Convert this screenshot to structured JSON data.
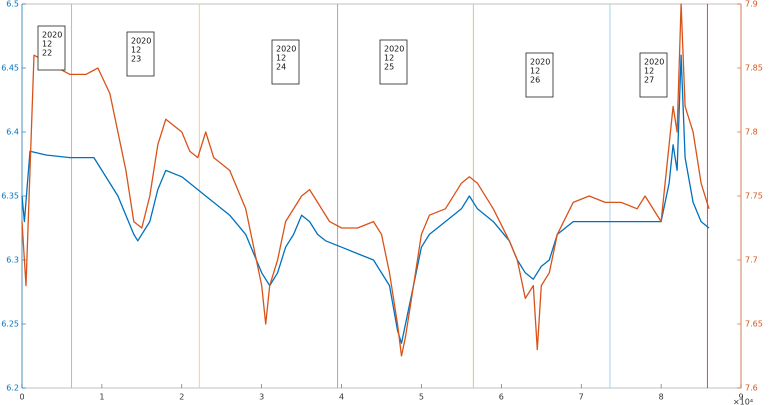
{
  "chart_data": {
    "type": "line",
    "xlim": [
      0,
      9
    ],
    "xticks": [
      0,
      1,
      2,
      3,
      4,
      5,
      6,
      7,
      8,
      9
    ],
    "x_multiplier": "×10⁴",
    "ylim": [
      6.2,
      6.5
    ],
    "yticks": [
      6.2,
      6.25,
      6.3,
      6.35,
      6.4,
      6.45,
      6.5
    ],
    "y2lim": [
      7.6,
      7.9
    ],
    "y2ticks": [
      7.6,
      7.65,
      7.7,
      7.75,
      7.8,
      7.85,
      7.9
    ],
    "y_color": "#0072bd",
    "y2_color": "#d95319",
    "vlines": [
      {
        "x": 0.62,
        "color": "#f4a582"
      },
      {
        "x": 2.22,
        "color": "#f2d479"
      },
      {
        "x": 3.95,
        "color": "#b79cc8"
      },
      {
        "x": 5.65,
        "color": "#b5d48a"
      },
      {
        "x": 7.36,
        "color": "#9fd6ef"
      },
      {
        "x": 8.58,
        "color": "#e0493a"
      }
    ],
    "annotations": [
      [
        "2020",
        "12",
        "22"
      ],
      [
        "2020",
        "12",
        "23"
      ],
      [
        "2020",
        "12",
        "24"
      ],
      [
        "2020",
        "12",
        "25"
      ],
      [
        "2020",
        "12",
        "26"
      ],
      [
        "2020",
        "12",
        "27"
      ]
    ],
    "series": [
      {
        "color": "#0072bd",
        "axis": "y",
        "x": [
          0,
          0.03,
          0.1,
          0.3,
          0.6,
          0.9,
          1.0,
          1.2,
          1.4,
          1.45,
          1.6,
          1.7,
          1.8,
          2.0,
          2.2,
          2.3,
          2.4,
          2.6,
          2.8,
          3.0,
          3.1,
          3.2,
          3.3,
          3.4,
          3.5,
          3.6,
          3.7,
          3.8,
          4.0,
          4.2,
          4.4,
          4.6,
          4.7,
          4.75,
          4.8,
          4.9,
          5.0,
          5.1,
          5.3,
          5.5,
          5.6,
          5.7,
          5.9,
          6.1,
          6.2,
          6.3,
          6.4,
          6.5,
          6.6,
          6.7,
          6.9,
          7.1,
          7.3,
          7.5,
          7.7,
          8.0,
          8.1,
          8.15,
          8.2,
          8.25,
          8.3,
          8.4,
          8.5,
          8.6
        ],
        "values": [
          6.35,
          6.33,
          6.385,
          6.382,
          6.38,
          6.38,
          6.37,
          6.35,
          6.32,
          6.315,
          6.33,
          6.355,
          6.37,
          6.365,
          6.355,
          6.35,
          6.345,
          6.335,
          6.32,
          6.29,
          6.28,
          6.29,
          6.31,
          6.32,
          6.335,
          6.33,
          6.32,
          6.315,
          6.31,
          6.305,
          6.3,
          6.28,
          6.245,
          6.235,
          6.25,
          6.28,
          6.31,
          6.32,
          6.33,
          6.34,
          6.35,
          6.34,
          6.33,
          6.315,
          6.3,
          6.29,
          6.285,
          6.295,
          6.3,
          6.32,
          6.33,
          6.33,
          6.33,
          6.33,
          6.33,
          6.33,
          6.36,
          6.39,
          6.37,
          6.46,
          6.38,
          6.345,
          6.33,
          6.325
        ]
      },
      {
        "color": "#d95319",
        "axis": "y2",
        "x": [
          0,
          0.05,
          0.15,
          0.3,
          0.6,
          0.8,
          0.95,
          1.1,
          1.3,
          1.4,
          1.5,
          1.6,
          1.7,
          1.8,
          2.0,
          2.1,
          2.2,
          2.3,
          2.4,
          2.6,
          2.8,
          3.0,
          3.05,
          3.1,
          3.2,
          3.3,
          3.5,
          3.6,
          3.7,
          3.85,
          4.0,
          4.2,
          4.4,
          4.5,
          4.6,
          4.7,
          4.75,
          4.8,
          4.9,
          5.0,
          5.1,
          5.3,
          5.5,
          5.6,
          5.7,
          5.9,
          6.1,
          6.2,
          6.3,
          6.4,
          6.45,
          6.5,
          6.6,
          6.7,
          6.9,
          7.1,
          7.3,
          7.5,
          7.7,
          7.8,
          8.0,
          8.1,
          8.15,
          8.2,
          8.25,
          8.3,
          8.4,
          8.5,
          8.6
        ],
        "values": [
          7.73,
          7.68,
          7.86,
          7.855,
          7.845,
          7.845,
          7.85,
          7.83,
          7.77,
          7.73,
          7.725,
          7.75,
          7.79,
          7.81,
          7.8,
          7.785,
          7.78,
          7.8,
          7.78,
          7.77,
          7.74,
          7.68,
          7.65,
          7.68,
          7.7,
          7.73,
          7.75,
          7.755,
          7.745,
          7.73,
          7.725,
          7.725,
          7.73,
          7.72,
          7.69,
          7.65,
          7.625,
          7.64,
          7.68,
          7.72,
          7.735,
          7.74,
          7.76,
          7.765,
          7.76,
          7.74,
          7.715,
          7.7,
          7.67,
          7.68,
          7.63,
          7.68,
          7.69,
          7.72,
          7.745,
          7.75,
          7.745,
          7.745,
          7.74,
          7.75,
          7.73,
          7.79,
          7.82,
          7.8,
          7.9,
          7.82,
          7.8,
          7.76,
          7.74
        ]
      }
    ]
  }
}
